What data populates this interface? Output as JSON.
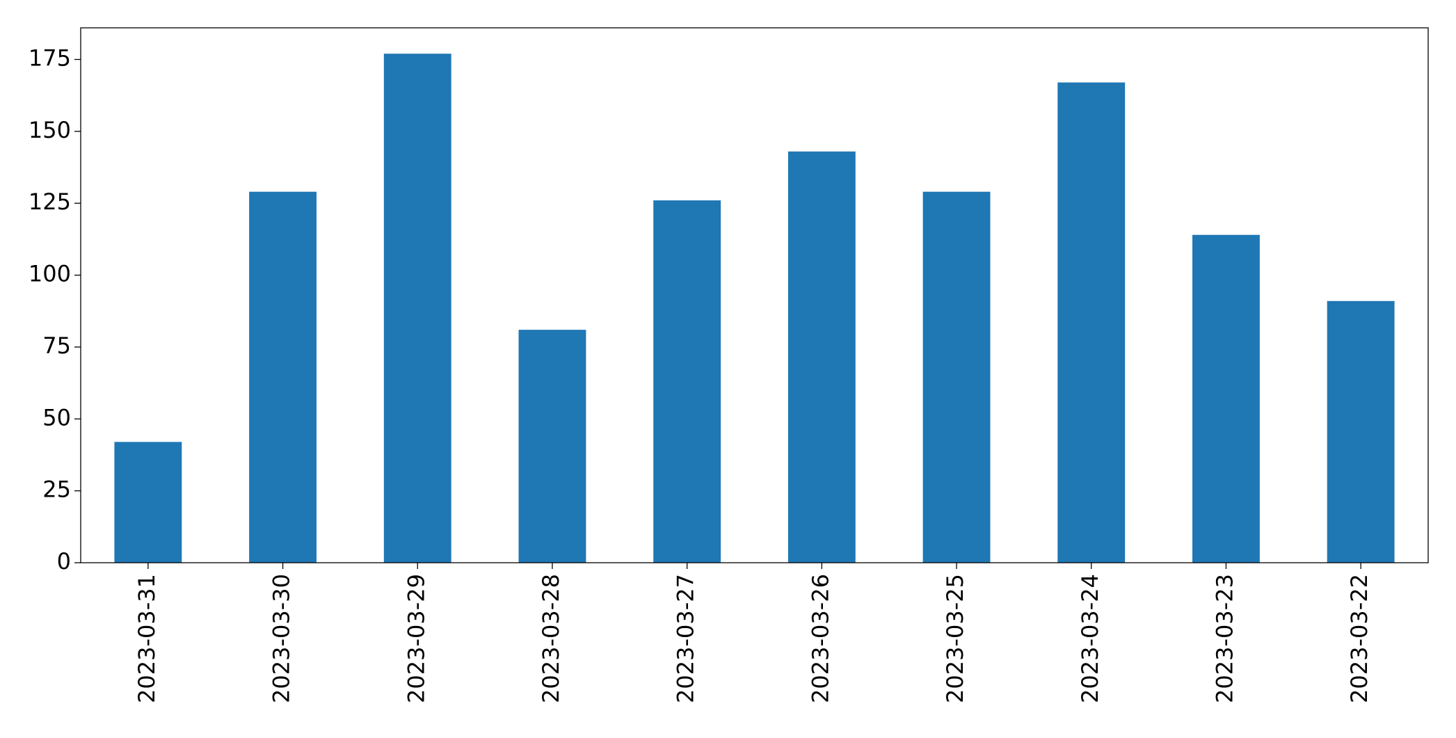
{
  "chart_data": {
    "type": "bar",
    "categories": [
      "2023-03-31",
      "2023-03-30",
      "2023-03-29",
      "2023-03-28",
      "2023-03-27",
      "2023-03-26",
      "2023-03-25",
      "2023-03-24",
      "2023-03-23",
      "2023-03-22"
    ],
    "values": [
      42,
      129,
      177,
      81,
      126,
      143,
      129,
      167,
      114,
      91
    ],
    "color": "#1f77b4",
    "ylim": [
      0,
      186
    ],
    "yticks": [
      0,
      25,
      50,
      75,
      100,
      125,
      150,
      175
    ],
    "grid": false
  }
}
